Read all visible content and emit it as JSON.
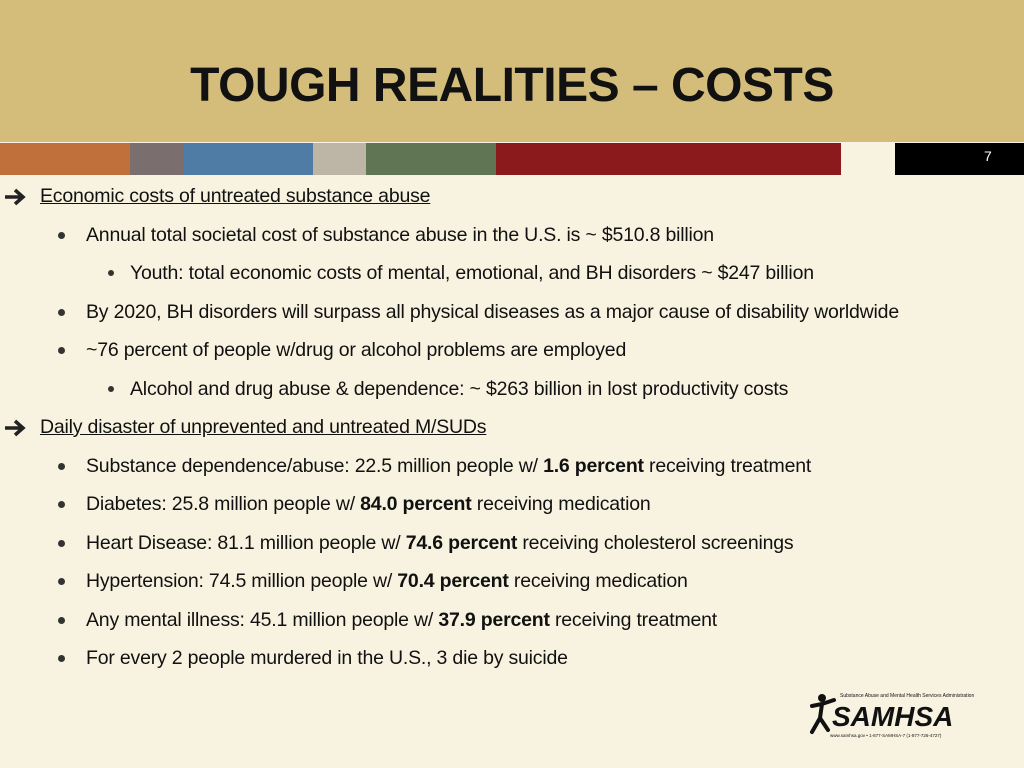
{
  "header": {
    "title": "TOUGH REALITIES – COSTS",
    "page_number": "7"
  },
  "sections": [
    {
      "heading": "Economic costs of untreated substance abuse",
      "items": [
        {
          "text": "Annual total societal cost of substance abuse in the U.S. is ~ $510.8 billion",
          "sub": [
            {
              "text": "Youth:  total economic costs of mental, emotional, and BH disorders ~ $247 billion"
            }
          ]
        },
        {
          "text": "By 2020, BH disorders will surpass all physical diseases as a major cause of disability worldwide"
        },
        {
          "text": "~76 percent of people w/drug or alcohol problems are employed",
          "sub": [
            {
              "text": "Alcohol and drug abuse & dependence: ~ $263 billion in lost productivity costs"
            }
          ]
        }
      ]
    },
    {
      "heading": "Daily disaster of unprevented and untreated M/SUDs",
      "items": [
        {
          "text": "Substance dependence/abuse: 22.5 million people w/ ",
          "bold": "1.6 percent",
          "after": " receiving treatment"
        },
        {
          "text": "Diabetes:  25.8 million people w/ ",
          "bold": "84.0 percent",
          "after": " receiving medication"
        },
        {
          "text": "Heart Disease:  81.1 million people w/ ",
          "bold": "74.6 percent",
          "after": " receiving cholesterol screenings"
        },
        {
          "text": "Hypertension:  74.5 million people w/ ",
          "bold": "70.4 percent",
          "after": " receiving medication"
        },
        {
          "text": "Any mental illness:  45.1 million people w/ ",
          "bold": "37.9 percent",
          "after": " receiving treatment"
        },
        {
          "text": "For every 2 people murdered in the U.S., 3 die by suicide"
        }
      ]
    }
  ],
  "logo": {
    "name": "SAMHSA",
    "agency": "Substance Abuse and Mental Health Services Administration",
    "contact": "www.samhsa.gov • 1-877-SAMHSA-7 (1-877-726-4727)"
  }
}
